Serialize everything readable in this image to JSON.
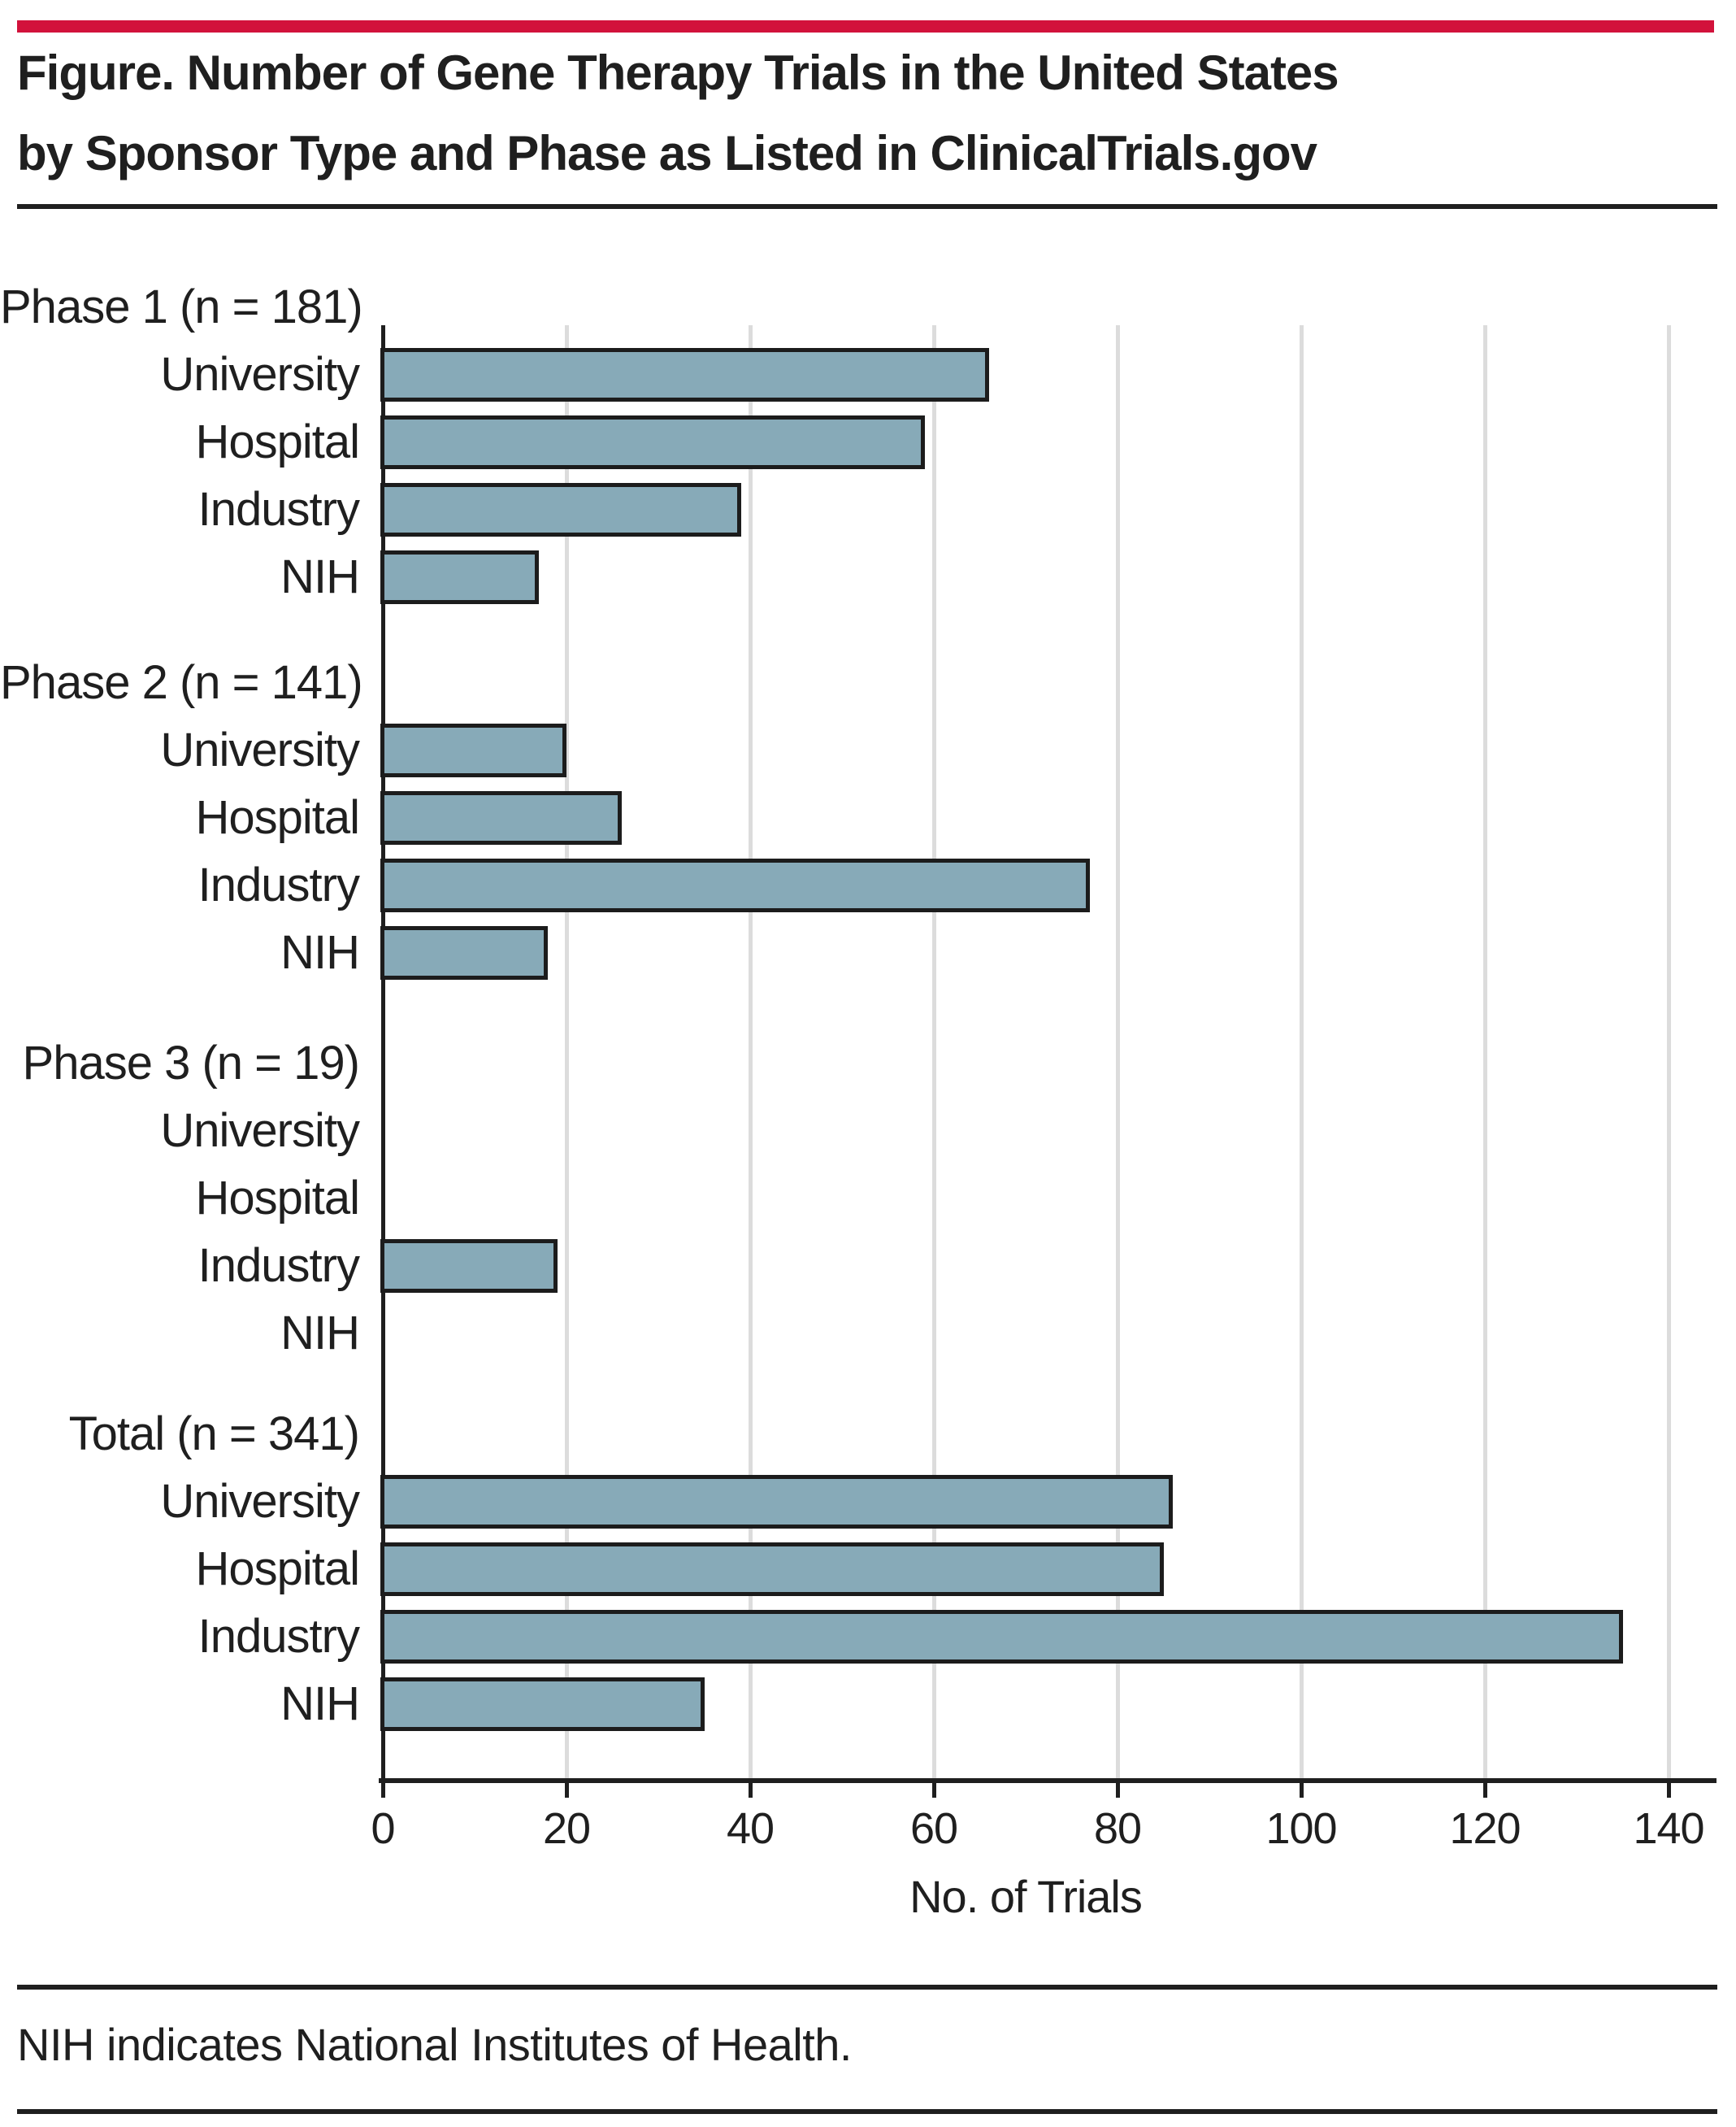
{
  "header": {
    "title_line1": "Figure. Number of Gene Therapy Trials in the United States",
    "title_line2": "by Sponsor Type and Phase as Listed in ClinicalTrials.gov"
  },
  "footer": {
    "note": "NIH indicates National Institutes of Health."
  },
  "colors": {
    "accent_red": "#D2123B",
    "text": "#1F1F1F",
    "bar_fill": "#87AAB8",
    "bar_border": "#1C1C1C",
    "gridline": "#DCDCDC",
    "axis": "#1F1F1F"
  },
  "chart_data": {
    "type": "bar",
    "orientation": "horizontal",
    "title": "Number of Gene Therapy Trials in the United States by Sponsor Type and Phase as Listed in ClinicalTrials.gov",
    "xlabel": "No. of Trials",
    "ylabel": "",
    "xlim": [
      0,
      140
    ],
    "xticks": [
      0,
      20,
      40,
      60,
      80,
      100,
      120,
      140
    ],
    "grid": true,
    "legend": "none",
    "categories": [
      "University",
      "Hospital",
      "Industry",
      "NIH"
    ],
    "groups": [
      {
        "label": "Phase 1 (n = 181)",
        "n": 181,
        "values": [
          66,
          59,
          39,
          17
        ]
      },
      {
        "label": "Phase 2 (n = 141)",
        "n": 141,
        "values": [
          20,
          26,
          77,
          18
        ]
      },
      {
        "label": "Phase 3 (n = 19)",
        "n": 19,
        "values": [
          0,
          0,
          19,
          0
        ]
      },
      {
        "label": "Total (n = 341)",
        "n": 341,
        "values": [
          86,
          85,
          135,
          35
        ]
      }
    ]
  }
}
